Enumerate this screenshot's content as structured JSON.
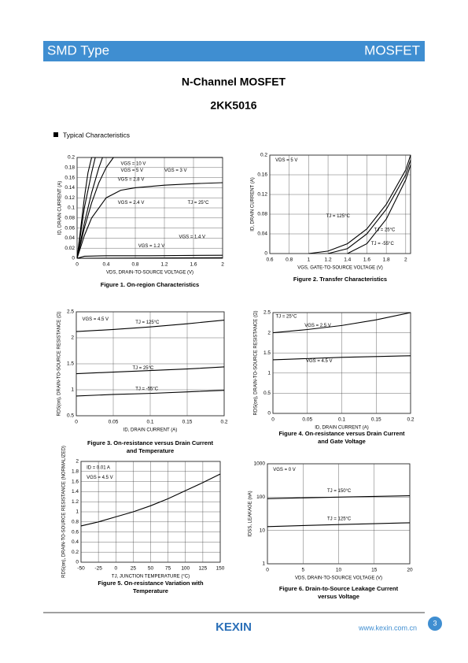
{
  "header": {
    "left": "SMD Type",
    "right": "MOSFET"
  },
  "title": "N-Channel MOSFET",
  "part": "2KK5016",
  "section": "Typical Characteristics",
  "chart_data": [
    {
      "type": "line",
      "caption": [
        "Figure 1. On-region Characteristics"
      ],
      "xlabel": "VDS, DRAIN-TO-SOURCE VOLTAGE (V)",
      "ylabel": "ID, DRAIN CURRENT (A)",
      "xlim": [
        0,
        2
      ],
      "ylim": [
        0,
        0.2
      ],
      "xticks": [
        0,
        0.4,
        0.8,
        1.2,
        1.6,
        2
      ],
      "yticks": [
        0,
        0.02,
        0.04,
        0.06,
        0.08,
        0.1,
        0.12,
        0.14,
        0.16,
        0.18,
        0.2
      ],
      "grid": true,
      "annotations": [
        "TJ = 25°C"
      ],
      "series": [
        {
          "name": "VGS = 10 V",
          "color": "#000000",
          "x": [
            0,
            0.05,
            0.1,
            0.15,
            0.2,
            0.6,
            1,
            1.4,
            1.8,
            2
          ],
          "values": [
            0,
            0.06,
            0.12,
            0.17,
            0.2,
            0.2,
            0.2,
            0.2,
            0.2,
            0.2
          ]
        },
        {
          "name": "VGS = 5 V",
          "color": "#000000",
          "x": [
            0,
            0.05,
            0.1,
            0.2,
            0.25,
            0.6,
            1,
            1.4,
            1.8,
            2
          ],
          "values": [
            0,
            0.05,
            0.1,
            0.17,
            0.2,
            0.2,
            0.2,
            0.2,
            0.2,
            0.2
          ]
        },
        {
          "name": "VGS = 3 V",
          "color": "#000000",
          "x": [
            0,
            0.1,
            0.2,
            0.3,
            0.35,
            0.6,
            1,
            1.4,
            1.8,
            2
          ],
          "values": [
            0,
            0.07,
            0.13,
            0.18,
            0.2,
            0.2,
            0.2,
            0.2,
            0.2,
            0.2
          ]
        },
        {
          "name": "VGS = 2.8 V",
          "color": "#000000",
          "x": [
            0,
            0.1,
            0.2,
            0.3,
            0.4,
            0.5
          ],
          "values": [
            0,
            0.06,
            0.11,
            0.15,
            0.18,
            0.2
          ]
        },
        {
          "name": "VGS = 2.4 V",
          "color": "#000000",
          "x": [
            0,
            0.1,
            0.2,
            0.4,
            0.6,
            0.8,
            1.2,
            1.6,
            2
          ],
          "values": [
            0,
            0.045,
            0.08,
            0.12,
            0.135,
            0.14,
            0.145,
            0.148,
            0.15
          ]
        },
        {
          "name": "VGS = 1.4 V",
          "color": "#000000",
          "x": [
            0,
            0.1,
            0.4,
            1,
            2
          ],
          "values": [
            0,
            0.004,
            0.005,
            0.005,
            0.006
          ]
        },
        {
          "name": "VGS = 1.2 V",
          "color": "#000000",
          "x": [
            0,
            2
          ],
          "values": [
            0,
            0.001
          ]
        }
      ]
    },
    {
      "type": "line",
      "caption": [
        "Figure 2. Transfer Characteristics"
      ],
      "xlabel": "VGS, GATE-TO-SOURCE VOLTAGE (V)",
      "ylabel": "ID, DRAIN CURRENT (A)",
      "xlim": [
        0.6,
        2.05
      ],
      "ylim": [
        0,
        0.2
      ],
      "xticks": [
        0.6,
        0.8,
        1,
        1.2,
        1.4,
        1.6,
        1.8,
        2
      ],
      "yticks": [
        0,
        0.04,
        0.08,
        0.12,
        0.16,
        0.2
      ],
      "grid": true,
      "annotations": [
        "VDS = 5 V"
      ],
      "series": [
        {
          "name": "TJ = 125°C",
          "color": "#000000",
          "x": [
            1,
            1.2,
            1.4,
            1.6,
            1.8,
            2,
            2.05
          ],
          "values": [
            0,
            0.005,
            0.02,
            0.05,
            0.1,
            0.17,
            0.2
          ]
        },
        {
          "name": "TJ = 25°C",
          "color": "#000000",
          "x": [
            1.2,
            1.4,
            1.6,
            1.8,
            2,
            2.05
          ],
          "values": [
            0,
            0.01,
            0.04,
            0.09,
            0.16,
            0.19
          ]
        },
        {
          "name": "TJ = -55°C",
          "color": "#000000",
          "x": [
            1.4,
            1.6,
            1.8,
            2,
            2.05
          ],
          "values": [
            0,
            0.02,
            0.07,
            0.15,
            0.18
          ]
        }
      ]
    },
    {
      "type": "line",
      "caption": [
        "Figure 3. On-resistance versus Drain Current",
        "and Temperature"
      ],
      "xlabel": "ID, DRAIN CURRENT (A)",
      "ylabel": "RDS(on), DRAIN-TO-SOURCE RESISTANCE (Ω)",
      "xlim": [
        0,
        0.2
      ],
      "ylim": [
        0.5,
        2.5
      ],
      "xticks": [
        0,
        0.05,
        0.1,
        0.15,
        0.2
      ],
      "yticks": [
        0.5,
        1,
        1.5,
        2,
        2.5
      ],
      "grid": true,
      "annotations": [
        "VGS = 4.5 V"
      ],
      "series": [
        {
          "name": "TJ = 125°C",
          "color": "#000000",
          "x": [
            0,
            0.05,
            0.1,
            0.15,
            0.2
          ],
          "values": [
            2.12,
            2.16,
            2.21,
            2.27,
            2.34
          ]
        },
        {
          "name": "TJ = 25°C",
          "color": "#000000",
          "x": [
            0,
            0.05,
            0.1,
            0.15,
            0.2
          ],
          "values": [
            1.31,
            1.34,
            1.37,
            1.4,
            1.44
          ]
        },
        {
          "name": "TJ = -55°C",
          "color": "#000000",
          "x": [
            0,
            0.05,
            0.1,
            0.15,
            0.2
          ],
          "values": [
            0.88,
            0.91,
            0.93,
            0.96,
            0.99
          ]
        }
      ]
    },
    {
      "type": "line",
      "caption": [
        "Figure 4. On-resistance versus Drain Current",
        "and Gate Voltage"
      ],
      "xlabel": "ID, DRAIN CURRENT (A)",
      "ylabel": "RDS(on), DRAIN-TO-SOURCE RESISTANCE (Ω)",
      "xlim": [
        0,
        0.2
      ],
      "ylim": [
        0,
        2.5
      ],
      "xticks": [
        0,
        0.05,
        0.1,
        0.15,
        0.2
      ],
      "yticks": [
        0,
        0.5,
        1,
        1.5,
        2,
        2.5
      ],
      "grid": true,
      "annotations": [
        "TJ = 25°C"
      ],
      "series": [
        {
          "name": "VGS = 2.5 V",
          "color": "#000000",
          "x": [
            0,
            0.05,
            0.1,
            0.15,
            0.2
          ],
          "values": [
            2.0,
            2.08,
            2.18,
            2.32,
            2.5
          ]
        },
        {
          "name": "VGS = 4.5 V",
          "color": "#000000",
          "x": [
            0,
            0.05,
            0.1,
            0.15,
            0.2
          ],
          "values": [
            1.33,
            1.36,
            1.39,
            1.41,
            1.43
          ]
        }
      ]
    },
    {
      "type": "line",
      "caption": [
        "Figure 5. On-resistance Variation with",
        "Temperature"
      ],
      "xlabel": "TJ, JUNCTION TEMPERATURE (°C)",
      "ylabel": "RDS(on), DRAIN-TO-SOURCE RESISTANCE (NORMALIZED)",
      "xlim": [
        -50,
        150
      ],
      "ylim": [
        0,
        2
      ],
      "xticks": [
        -50,
        -25,
        0,
        25,
        50,
        75,
        100,
        125,
        150
      ],
      "yticks": [
        0,
        0.2,
        0.4,
        0.6,
        0.8,
        1,
        1.2,
        1.4,
        1.6,
        1.8,
        2
      ],
      "grid": true,
      "annotations": [
        "ID = 0.01 A",
        "VGS = 4.5 V"
      ],
      "series": [
        {
          "color": "#000000",
          "x": [
            -50,
            -25,
            0,
            25,
            50,
            75,
            100,
            125,
            150
          ],
          "values": [
            0.72,
            0.8,
            0.9,
            1.0,
            1.12,
            1.26,
            1.42,
            1.58,
            1.75
          ]
        }
      ]
    },
    {
      "type": "line",
      "log_y": true,
      "caption": [
        "Figure 6. Drain-to-Source Leakage Current",
        "versus Voltage"
      ],
      "xlabel": "VDS, DRAIN-TO-SOURCE VOLTAGE (V)",
      "ylabel": "IDSS, LEAKAGE (nA)",
      "xlim": [
        0,
        20
      ],
      "ylim": [
        1,
        1000
      ],
      "xticks": [
        0,
        5,
        10,
        15,
        20
      ],
      "yticks": [
        1,
        10,
        100,
        1000
      ],
      "grid": true,
      "annotations": [
        "VGS = 0 V"
      ],
      "series": [
        {
          "name": "TJ = 150°C",
          "color": "#000000",
          "x": [
            0,
            5,
            10,
            15,
            20
          ],
          "values": [
            90,
            95,
            100,
            105,
            110
          ]
        },
        {
          "name": "TJ = 125°C",
          "color": "#000000",
          "x": [
            0,
            5,
            10,
            15,
            20
          ],
          "values": [
            13,
            14,
            15,
            16,
            17
          ]
        }
      ]
    }
  ],
  "footer": {
    "logo": "KEXIN",
    "url": "www.kexin.com.cn",
    "page": "3"
  }
}
